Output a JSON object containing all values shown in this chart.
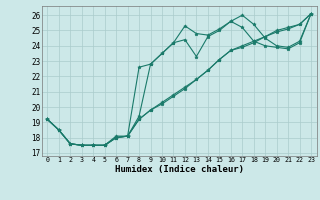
{
  "title": "",
  "xlabel": "Humidex (Indice chaleur)",
  "ylabel": "",
  "bg_color": "#cce8e8",
  "grid_color": "#aacccc",
  "line_color": "#1a7a6a",
  "xlim": [
    -0.5,
    23.5
  ],
  "ylim": [
    16.8,
    26.6
  ],
  "yticks": [
    17,
    18,
    19,
    20,
    21,
    22,
    23,
    24,
    25,
    26
  ],
  "xticks": [
    0,
    1,
    2,
    3,
    4,
    5,
    6,
    7,
    8,
    9,
    10,
    11,
    12,
    13,
    14,
    15,
    16,
    17,
    18,
    19,
    20,
    21,
    22,
    23
  ],
  "series": [
    [
      19.2,
      18.5,
      17.6,
      17.5,
      17.5,
      17.5,
      18.1,
      18.1,
      19.4,
      22.8,
      23.5,
      24.2,
      25.3,
      24.8,
      24.7,
      25.1,
      25.6,
      26.0,
      25.4,
      24.5,
      24.0,
      23.9,
      24.3,
      26.1
    ],
    [
      19.2,
      18.5,
      17.6,
      17.5,
      17.5,
      17.5,
      18.0,
      18.1,
      22.6,
      22.8,
      23.5,
      24.2,
      24.4,
      23.3,
      24.6,
      25.0,
      25.6,
      25.2,
      24.3,
      24.0,
      23.9,
      23.8,
      24.2,
      26.1
    ],
    [
      19.2,
      18.5,
      17.6,
      17.5,
      17.5,
      17.5,
      18.0,
      18.1,
      19.2,
      19.8,
      20.3,
      20.8,
      21.3,
      21.8,
      22.4,
      23.1,
      23.7,
      24.0,
      24.3,
      24.6,
      25.0,
      25.2,
      25.4,
      26.1
    ],
    [
      19.2,
      18.5,
      17.6,
      17.5,
      17.5,
      17.5,
      18.0,
      18.1,
      19.2,
      19.8,
      20.2,
      20.7,
      21.2,
      21.8,
      22.4,
      23.1,
      23.7,
      23.9,
      24.2,
      24.6,
      24.9,
      25.1,
      25.4,
      26.1
    ]
  ]
}
